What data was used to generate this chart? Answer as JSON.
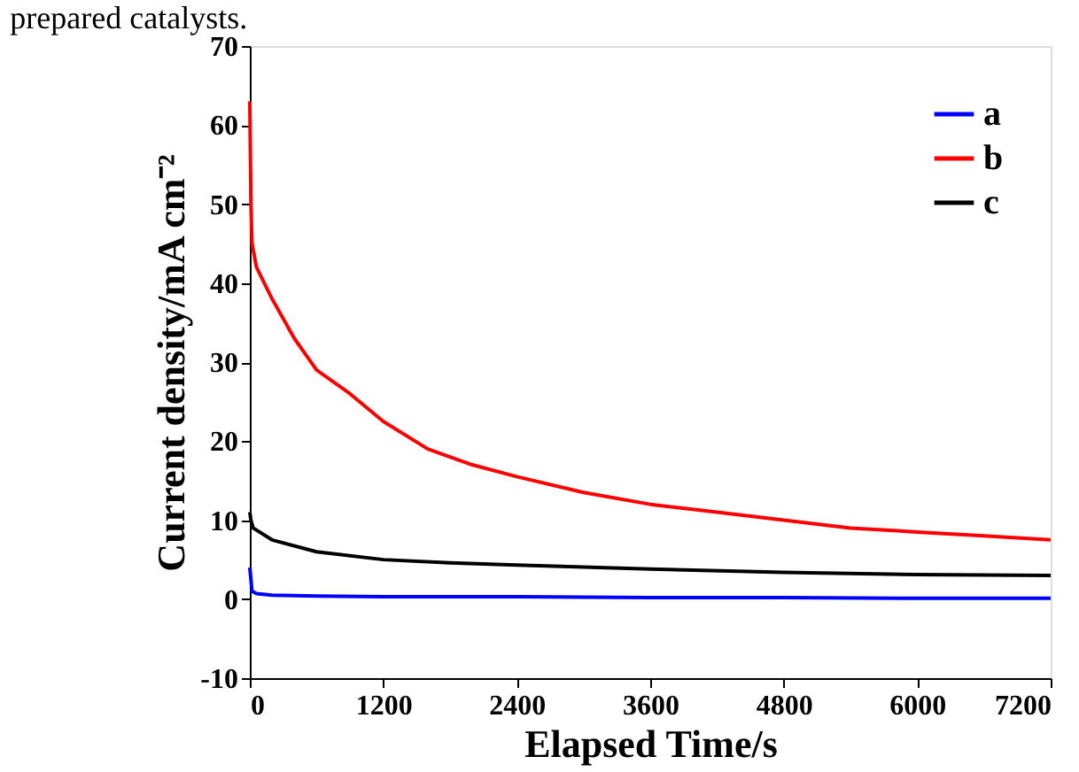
{
  "chart_data": {
    "type": "line",
    "xlabel": "Elapsed Time/s",
    "ylabel": "Current density/mA cm⁻²",
    "annotations": [
      "prepared catalysts."
    ],
    "xlim": [
      0,
      7200
    ],
    "xticks": [
      0,
      1200,
      2400,
      3600,
      4800,
      6000,
      7200
    ],
    "ylim": [
      -10,
      70
    ],
    "yticks": [
      -10,
      0,
      10,
      20,
      30,
      40,
      50,
      60,
      70
    ],
    "grid": false,
    "legend": "top right",
    "marker": "none",
    "line_style": "solid",
    "series": [
      {
        "name": "a",
        "color": "#0000ff",
        "x": [
          0,
          20,
          60,
          200,
          600,
          1200,
          2400,
          3600,
          4800,
          6000,
          7200
        ],
        "values": [
          4,
          1,
          0.7,
          0.5,
          0.4,
          0.3,
          0.3,
          0.2,
          0.2,
          0.1,
          0.1
        ]
      },
      {
        "name": "b",
        "color": "#ff0000",
        "x": [
          0,
          10,
          20,
          60,
          200,
          400,
          600,
          900,
          1200,
          1600,
          2000,
          2400,
          3000,
          3600,
          4200,
          4800,
          5400,
          6000,
          6600,
          7200
        ],
        "values": [
          63,
          50,
          45,
          42,
          38,
          33,
          29,
          26,
          22.5,
          19,
          17,
          15.5,
          13.5,
          12,
          11,
          10,
          9,
          8.5,
          8,
          7.5
        ]
      },
      {
        "name": "c",
        "color": "#000000",
        "x": [
          0,
          10,
          30,
          200,
          600,
          1200,
          1800,
          2400,
          3600,
          4800,
          6000,
          7200
        ],
        "values": [
          11,
          10,
          9,
          7.5,
          6,
          5,
          4.6,
          4.3,
          3.8,
          3.4,
          3.1,
          3
        ]
      }
    ]
  }
}
